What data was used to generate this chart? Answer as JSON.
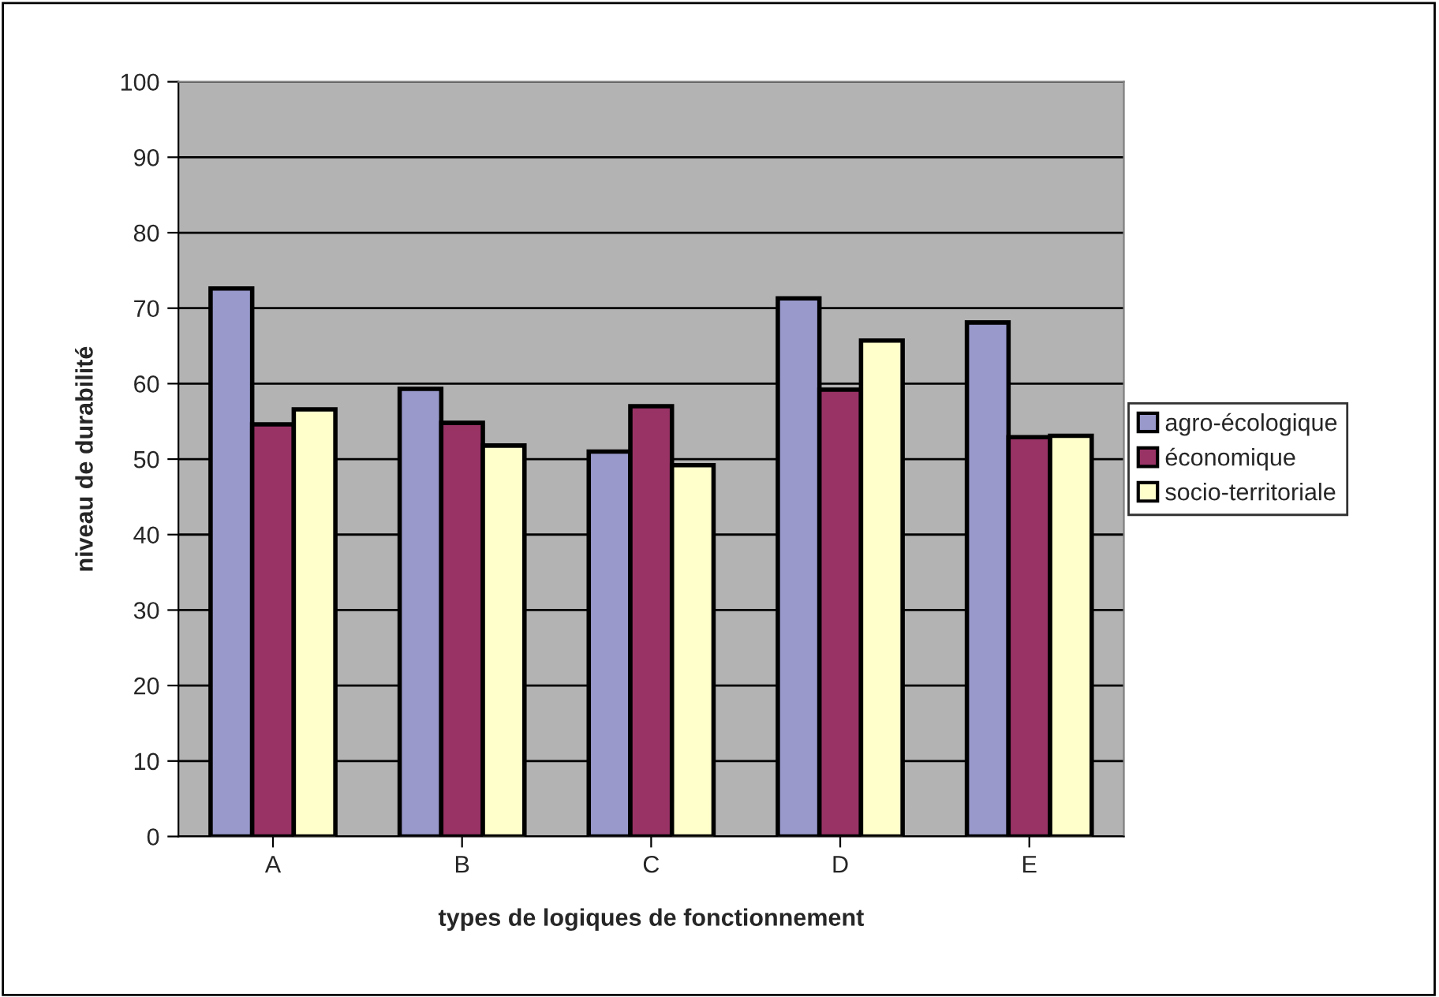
{
  "chart_data": {
    "type": "bar",
    "xlabel": "types de logiques de fonctionnement",
    "ylabel": "niveau de durabilité",
    "categories": [
      "A",
      "B",
      "C",
      "D",
      "E"
    ],
    "series": [
      {
        "name": "agro-écologique",
        "color": "#9999cc",
        "values": [
          72.6,
          59.3,
          51.0,
          71.3,
          68.1
        ]
      },
      {
        "name": "économique",
        "color": "#993366",
        "values": [
          54.6,
          54.8,
          57.0,
          59.2,
          52.9
        ]
      },
      {
        "name": "socio-territoriale",
        "color": "#ffffcc",
        "values": [
          56.6,
          51.8,
          49.2,
          65.7,
          53.1
        ]
      }
    ],
    "ylim": [
      0,
      100
    ],
    "yticks": [
      0,
      10,
      20,
      30,
      40,
      50,
      60,
      70,
      80,
      90,
      100
    ],
    "grid": "y",
    "legend": "right"
  }
}
